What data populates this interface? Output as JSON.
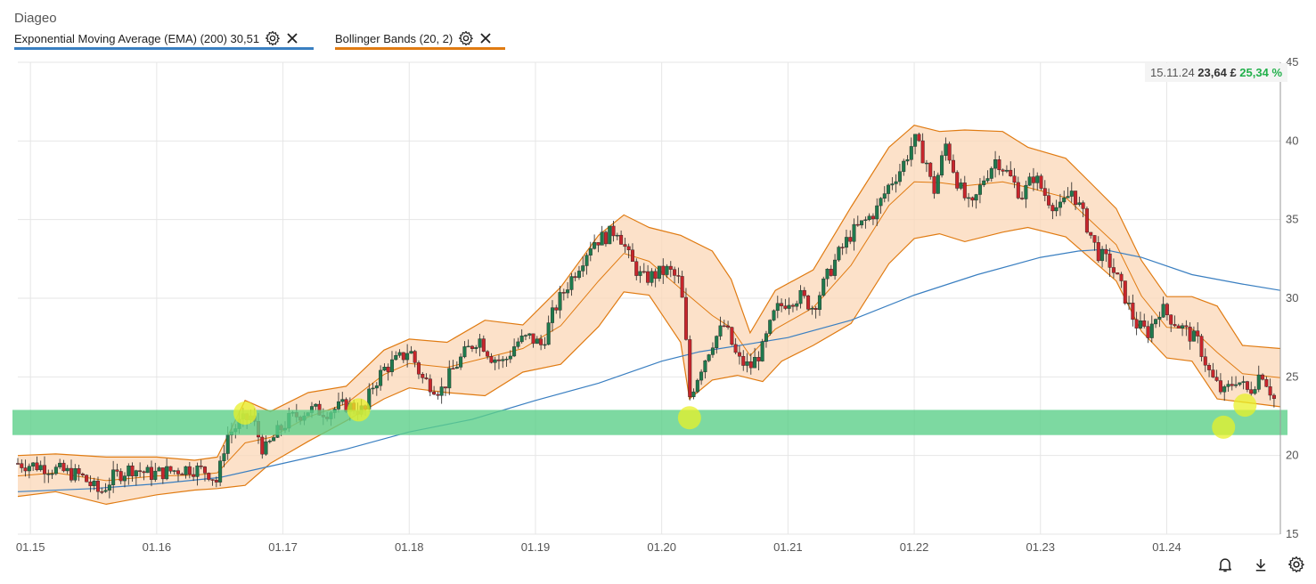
{
  "header": {
    "title": "Diageo",
    "indicators": [
      {
        "label": "Exponential Moving Average (EMA) (200) 30,51",
        "color": "#3a7fc1",
        "settings_icon": "gear-icon",
        "remove_icon": "close-icon"
      },
      {
        "label": "Bollinger Bands (20, 2)",
        "color": "#e07b12",
        "settings_icon": "gear-icon",
        "remove_icon": "close-icon"
      }
    ]
  },
  "price_box": {
    "date": "15.11.24",
    "price": "23,64 £",
    "change": "25,34 %"
  },
  "toolbar": {
    "icons": [
      "bell-icon",
      "download-icon",
      "gear-icon"
    ]
  },
  "chart_data": {
    "type": "candlestick",
    "title": "Diageo",
    "x_axis": {
      "ticks": [
        "01.15",
        "01.16",
        "01.17",
        "01.18",
        "01.19",
        "01.20",
        "01.21",
        "01.22",
        "01.23",
        "01.24"
      ],
      "tick_values": [
        2015,
        2016,
        2017,
        2018,
        2019,
        2020,
        2021,
        2022,
        2023,
        2024
      ],
      "range": [
        2014.9,
        2024.9
      ]
    },
    "y_axis": {
      "ticks": [
        "15",
        "20",
        "25",
        "30",
        "35",
        "40",
        "45"
      ],
      "tick_values": [
        15,
        20,
        25,
        30,
        35,
        40,
        45
      ],
      "range": [
        15,
        45
      ],
      "side": "right"
    },
    "grid": true,
    "price_path": [
      [
        2014.9,
        19.5
      ],
      [
        2015.1,
        19.3
      ],
      [
        2015.25,
        19.0
      ],
      [
        2015.4,
        18.7
      ],
      [
        2015.55,
        17.6
      ],
      [
        2015.65,
        18.6
      ],
      [
        2015.8,
        19.2
      ],
      [
        2015.95,
        18.8
      ],
      [
        2016.1,
        19.0
      ],
      [
        2016.25,
        19.2
      ],
      [
        2016.4,
        19.0
      ],
      [
        2016.48,
        18.3
      ],
      [
        2016.55,
        21.2
      ],
      [
        2016.65,
        22.0
      ],
      [
        2016.75,
        22.5
      ],
      [
        2016.85,
        20.2
      ],
      [
        2016.95,
        21.4
      ],
      [
        2017.05,
        22.3
      ],
      [
        2017.2,
        22.9
      ],
      [
        2017.35,
        22.8
      ],
      [
        2017.5,
        23.2
      ],
      [
        2017.65,
        22.8
      ],
      [
        2017.7,
        24.3
      ],
      [
        2017.8,
        25.5
      ],
      [
        2017.95,
        26.3
      ],
      [
        2018.0,
        26.8
      ],
      [
        2018.1,
        24.9
      ],
      [
        2018.25,
        24.1
      ],
      [
        2018.35,
        25.5
      ],
      [
        2018.45,
        26.6
      ],
      [
        2018.55,
        27.5
      ],
      [
        2018.65,
        26.3
      ],
      [
        2018.75,
        25.9
      ],
      [
        2018.85,
        27.2
      ],
      [
        2018.95,
        27.5
      ],
      [
        2019.05,
        27.0
      ],
      [
        2019.15,
        29.3
      ],
      [
        2019.25,
        30.8
      ],
      [
        2019.35,
        32.2
      ],
      [
        2019.45,
        33.6
      ],
      [
        2019.55,
        33.9
      ],
      [
        2019.65,
        34.4
      ],
      [
        2019.75,
        32.4
      ],
      [
        2019.85,
        31.2
      ],
      [
        2019.95,
        31.5
      ],
      [
        2020.05,
        31.8
      ],
      [
        2020.15,
        31.0
      ],
      [
        2020.2,
        26.4
      ],
      [
        2020.22,
        23.7
      ],
      [
        2020.3,
        25.4
      ],
      [
        2020.4,
        27.2
      ],
      [
        2020.5,
        28.3
      ],
      [
        2020.6,
        26.1
      ],
      [
        2020.7,
        25.6
      ],
      [
        2020.8,
        26.8
      ],
      [
        2020.9,
        29.2
      ],
      [
        2021.0,
        29.9
      ],
      [
        2021.1,
        30.1
      ],
      [
        2021.2,
        29.4
      ],
      [
        2021.3,
        31.2
      ],
      [
        2021.4,
        32.8
      ],
      [
        2021.5,
        34.1
      ],
      [
        2021.6,
        34.8
      ],
      [
        2021.7,
        35.6
      ],
      [
        2021.8,
        37.2
      ],
      [
        2021.9,
        38.3
      ],
      [
        2022.0,
        40.1
      ],
      [
        2022.1,
        38.6
      ],
      [
        2022.15,
        36.6
      ],
      [
        2022.25,
        39.8
      ],
      [
        2022.35,
        37.2
      ],
      [
        2022.45,
        35.6
      ],
      [
        2022.55,
        37.6
      ],
      [
        2022.65,
        38.9
      ],
      [
        2022.75,
        37.8
      ],
      [
        2022.85,
        36.5
      ],
      [
        2022.95,
        37.8
      ],
      [
        2023.05,
        36.4
      ],
      [
        2023.15,
        35.6
      ],
      [
        2023.25,
        36.9
      ],
      [
        2023.35,
        35.0
      ],
      [
        2023.45,
        32.9
      ],
      [
        2023.55,
        32.2
      ],
      [
        2023.65,
        30.5
      ],
      [
        2023.75,
        28.4
      ],
      [
        2023.85,
        27.8
      ],
      [
        2023.95,
        29.4
      ],
      [
        2024.05,
        28.6
      ],
      [
        2024.15,
        27.9
      ],
      [
        2024.25,
        27.2
      ],
      [
        2024.35,
        25.0
      ],
      [
        2024.45,
        23.9
      ],
      [
        2024.55,
        24.9
      ],
      [
        2024.65,
        24.0
      ],
      [
        2024.75,
        25.4
      ],
      [
        2024.85,
        23.6
      ]
    ],
    "ema_200": [
      [
        2014.9,
        17.7
      ],
      [
        2015.5,
        17.9
      ],
      [
        2016.0,
        18.2
      ],
      [
        2016.5,
        18.6
      ],
      [
        2017.0,
        19.5
      ],
      [
        2017.5,
        20.4
      ],
      [
        2018.0,
        21.5
      ],
      [
        2018.5,
        22.3
      ],
      [
        2019.0,
        23.5
      ],
      [
        2019.5,
        24.6
      ],
      [
        2020.0,
        26.0
      ],
      [
        2020.3,
        26.6
      ],
      [
        2020.7,
        27.1
      ],
      [
        2021.0,
        27.5
      ],
      [
        2021.5,
        28.6
      ],
      [
        2022.0,
        30.2
      ],
      [
        2022.5,
        31.5
      ],
      [
        2023.0,
        32.6
      ],
      [
        2023.3,
        33.0
      ],
      [
        2023.5,
        33.1
      ],
      [
        2023.8,
        32.6
      ],
      [
        2024.2,
        31.5
      ],
      [
        2024.6,
        30.9
      ],
      [
        2024.9,
        30.5
      ]
    ],
    "bollinger_bands": {
      "upper": [
        [
          2014.9,
          20.0
        ],
        [
          2015.2,
          20.1
        ],
        [
          2015.6,
          19.9
        ],
        [
          2016.0,
          19.9
        ],
        [
          2016.3,
          19.7
        ],
        [
          2016.48,
          19.9
        ],
        [
          2016.7,
          23.5
        ],
        [
          2016.9,
          22.8
        ],
        [
          2017.2,
          24.0
        ],
        [
          2017.5,
          24.4
        ],
        [
          2017.8,
          26.7
        ],
        [
          2018.0,
          27.4
        ],
        [
          2018.3,
          27.2
        ],
        [
          2018.6,
          28.6
        ],
        [
          2018.9,
          28.3
        ],
        [
          2019.2,
          30.7
        ],
        [
          2019.5,
          34.0
        ],
        [
          2019.7,
          35.3
        ],
        [
          2019.9,
          34.5
        ],
        [
          2020.15,
          34.0
        ],
        [
          2020.4,
          33.0
        ],
        [
          2020.55,
          31.2
        ],
        [
          2020.7,
          27.8
        ],
        [
          2020.9,
          30.5
        ],
        [
          2021.2,
          31.8
        ],
        [
          2021.5,
          35.8
        ],
        [
          2021.8,
          39.6
        ],
        [
          2022.0,
          41.0
        ],
        [
          2022.2,
          40.6
        ],
        [
          2022.4,
          40.7
        ],
        [
          2022.7,
          40.6
        ],
        [
          2022.9,
          39.6
        ],
        [
          2023.2,
          38.9
        ],
        [
          2023.4,
          37.3
        ],
        [
          2023.6,
          35.7
        ],
        [
          2023.8,
          32.4
        ],
        [
          2024.0,
          30.1
        ],
        [
          2024.2,
          30.1
        ],
        [
          2024.4,
          29.5
        ],
        [
          2024.6,
          27.0
        ],
        [
          2024.9,
          26.8
        ]
      ],
      "lower": [
        [
          2014.9,
          17.4
        ],
        [
          2015.2,
          17.7
        ],
        [
          2015.6,
          16.9
        ],
        [
          2016.0,
          17.5
        ],
        [
          2016.3,
          17.8
        ],
        [
          2016.48,
          17.9
        ],
        [
          2016.7,
          18.1
        ],
        [
          2016.9,
          19.5
        ],
        [
          2017.2,
          20.9
        ],
        [
          2017.5,
          22.2
        ],
        [
          2017.8,
          23.6
        ],
        [
          2018.0,
          24.3
        ],
        [
          2018.3,
          24.0
        ],
        [
          2018.6,
          23.8
        ],
        [
          2018.9,
          25.3
        ],
        [
          2019.2,
          25.8
        ],
        [
          2019.5,
          28.2
        ],
        [
          2019.7,
          30.4
        ],
        [
          2019.9,
          30.2
        ],
        [
          2020.15,
          27.2
        ],
        [
          2020.22,
          23.6
        ],
        [
          2020.4,
          24.8
        ],
        [
          2020.6,
          25.1
        ],
        [
          2020.8,
          24.7
        ],
        [
          2020.95,
          26.0
        ],
        [
          2021.2,
          27.0
        ],
        [
          2021.5,
          28.4
        ],
        [
          2021.8,
          32.2
        ],
        [
          2022.0,
          33.8
        ],
        [
          2022.2,
          34.1
        ],
        [
          2022.4,
          33.6
        ],
        [
          2022.7,
          34.2
        ],
        [
          2022.9,
          34.5
        ],
        [
          2023.2,
          33.9
        ],
        [
          2023.4,
          32.5
        ],
        [
          2023.6,
          31.1
        ],
        [
          2023.8,
          27.9
        ],
        [
          2024.0,
          26.2
        ],
        [
          2024.2,
          26.0
        ],
        [
          2024.4,
          23.6
        ],
        [
          2024.6,
          23.4
        ],
        [
          2024.9,
          23.1
        ]
      ]
    },
    "support_zone": {
      "y_min": 21.3,
      "y_max": 22.9,
      "color": "#5ccf8a"
    },
    "highlight_points": [
      [
        2016.7,
        22.7
      ],
      [
        2017.6,
        22.9
      ],
      [
        2020.22,
        22.4
      ],
      [
        2024.45,
        21.8
      ],
      [
        2024.62,
        23.2
      ]
    ],
    "colors": {
      "up": "#1f7a4d",
      "down": "#c8262c",
      "ema": "#3a7fc1",
      "bollinger_line": "#e07b12",
      "bollinger_fill": "#fbd7b7",
      "highlight": "#e8f028",
      "grid": "#e6e6e6",
      "positive_change": "#22b04b"
    }
  }
}
